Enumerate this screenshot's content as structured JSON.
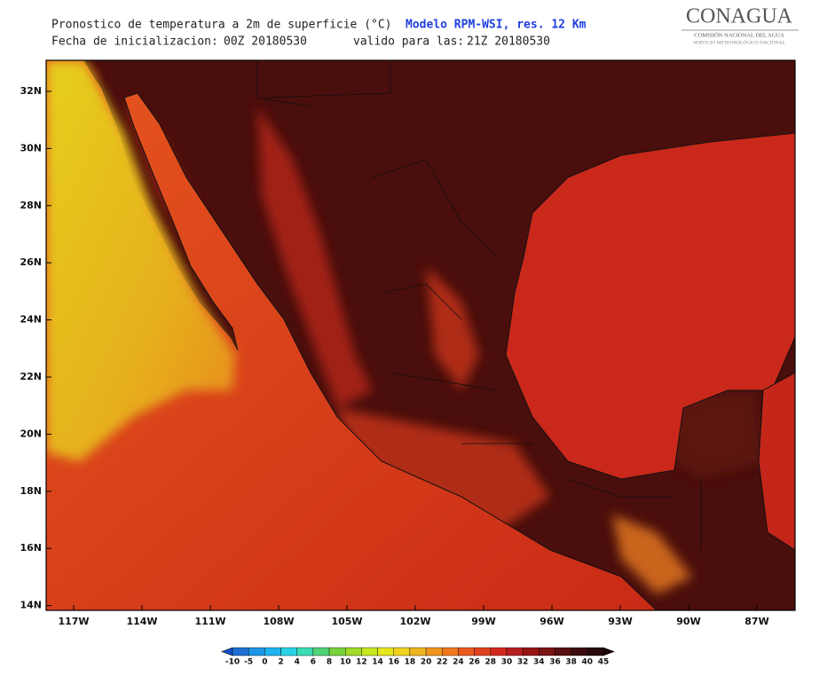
{
  "header": {
    "title": "Pronostico de temperatura a 2m de superficie (°C)",
    "model": "Modelo RPM-WSI, res. 12 Km",
    "init_label": "Fecha de inicializacion:",
    "init_time": "00Z 20180530",
    "valid_label": "valido para las:",
    "valid_time": "21Z  20180530"
  },
  "logo": {
    "name": "CONAGUA",
    "line1": "COMISIÓN NACIONAL DEL AGUA",
    "line2": "SERVICIO METEOROLÓGICO NACIONAL"
  },
  "map": {
    "lat_labels": [
      "32N",
      "30N",
      "28N",
      "26N",
      "24N",
      "22N",
      "20N",
      "18N",
      "16N",
      "14N"
    ],
    "lon_labels": [
      "117W",
      "114W",
      "111W",
      "108W",
      "105W",
      "102W",
      "99W",
      "96W",
      "93W",
      "90W",
      "87W"
    ]
  },
  "colorbar": {
    "labels": [
      -10,
      -5,
      0,
      2,
      4,
      6,
      8,
      10,
      12,
      14,
      16,
      18,
      20,
      22,
      24,
      26,
      28,
      30,
      32,
      34,
      36,
      38,
      40,
      45
    ]
  }
}
